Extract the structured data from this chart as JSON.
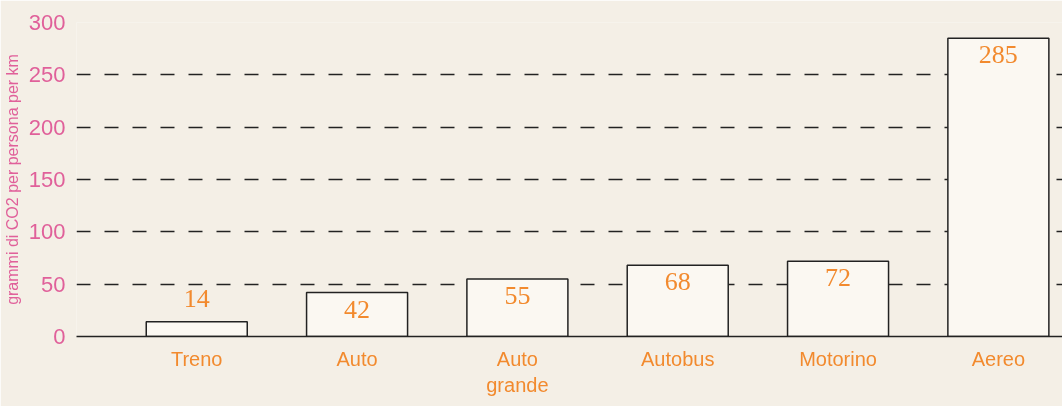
{
  "chart_data": {
    "type": "bar",
    "ylabel": "grammi di CO2 per persona per km",
    "categories": [
      "Treno",
      "Auto",
      "Auto\ngrande",
      "Autobus",
      "Motorino",
      "Aereo"
    ],
    "values": [
      14,
      42,
      55,
      68,
      72,
      285
    ],
    "color": "#fbf8f2",
    "ylim": [
      0,
      300
    ],
    "yticks": [
      0,
      50,
      100,
      150,
      200,
      250,
      300
    ],
    "grid": "y",
    "data_labels": true
  }
}
